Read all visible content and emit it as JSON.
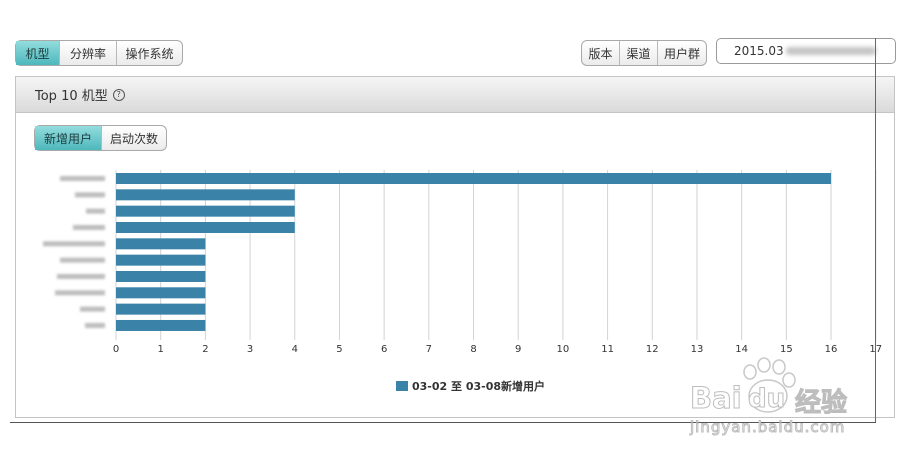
{
  "top_left_tabs": [
    {
      "label": "机型",
      "selected": true
    },
    {
      "label": "分辨率",
      "selected": false
    },
    {
      "label": "操作系统",
      "selected": false
    }
  ],
  "top_right_tabs": [
    {
      "label": "版本"
    },
    {
      "label": "渠道"
    },
    {
      "label": "用户群"
    }
  ],
  "date_range": {
    "value": "2015.03"
  },
  "panel": {
    "title": "Top 10 机型",
    "help_icon": "question-circle-icon",
    "help_glyph": "?"
  },
  "metric_tabs": [
    {
      "label": "新增用户",
      "selected": true
    },
    {
      "label": "启动次数",
      "selected": false
    }
  ],
  "chart_data": {
    "type": "bar",
    "orientation": "horizontal",
    "series": [
      {
        "name": "03-02 至 03-08新增用户",
        "values": [
          16,
          4,
          4,
          4,
          2,
          2,
          2,
          2,
          2,
          2
        ]
      }
    ],
    "xticks": [
      0,
      1,
      2,
      3,
      4,
      5,
      6,
      7,
      8,
      9,
      10,
      11,
      12,
      13,
      14,
      15,
      16,
      17
    ],
    "xlim": [
      0,
      17
    ],
    "grid": true,
    "legend": "bottom-center",
    "color": "#3a82a8"
  },
  "watermark": {
    "brand_left": "Bai",
    "brand_right": "du",
    "brand_cn": "经验",
    "url": "jingyan.baidu.com",
    "icon": "paw-icon"
  },
  "colors": {
    "accent_tab": "#4db8bc",
    "bar": "#3a82a8",
    "panel_border": "#c4c4c4"
  }
}
